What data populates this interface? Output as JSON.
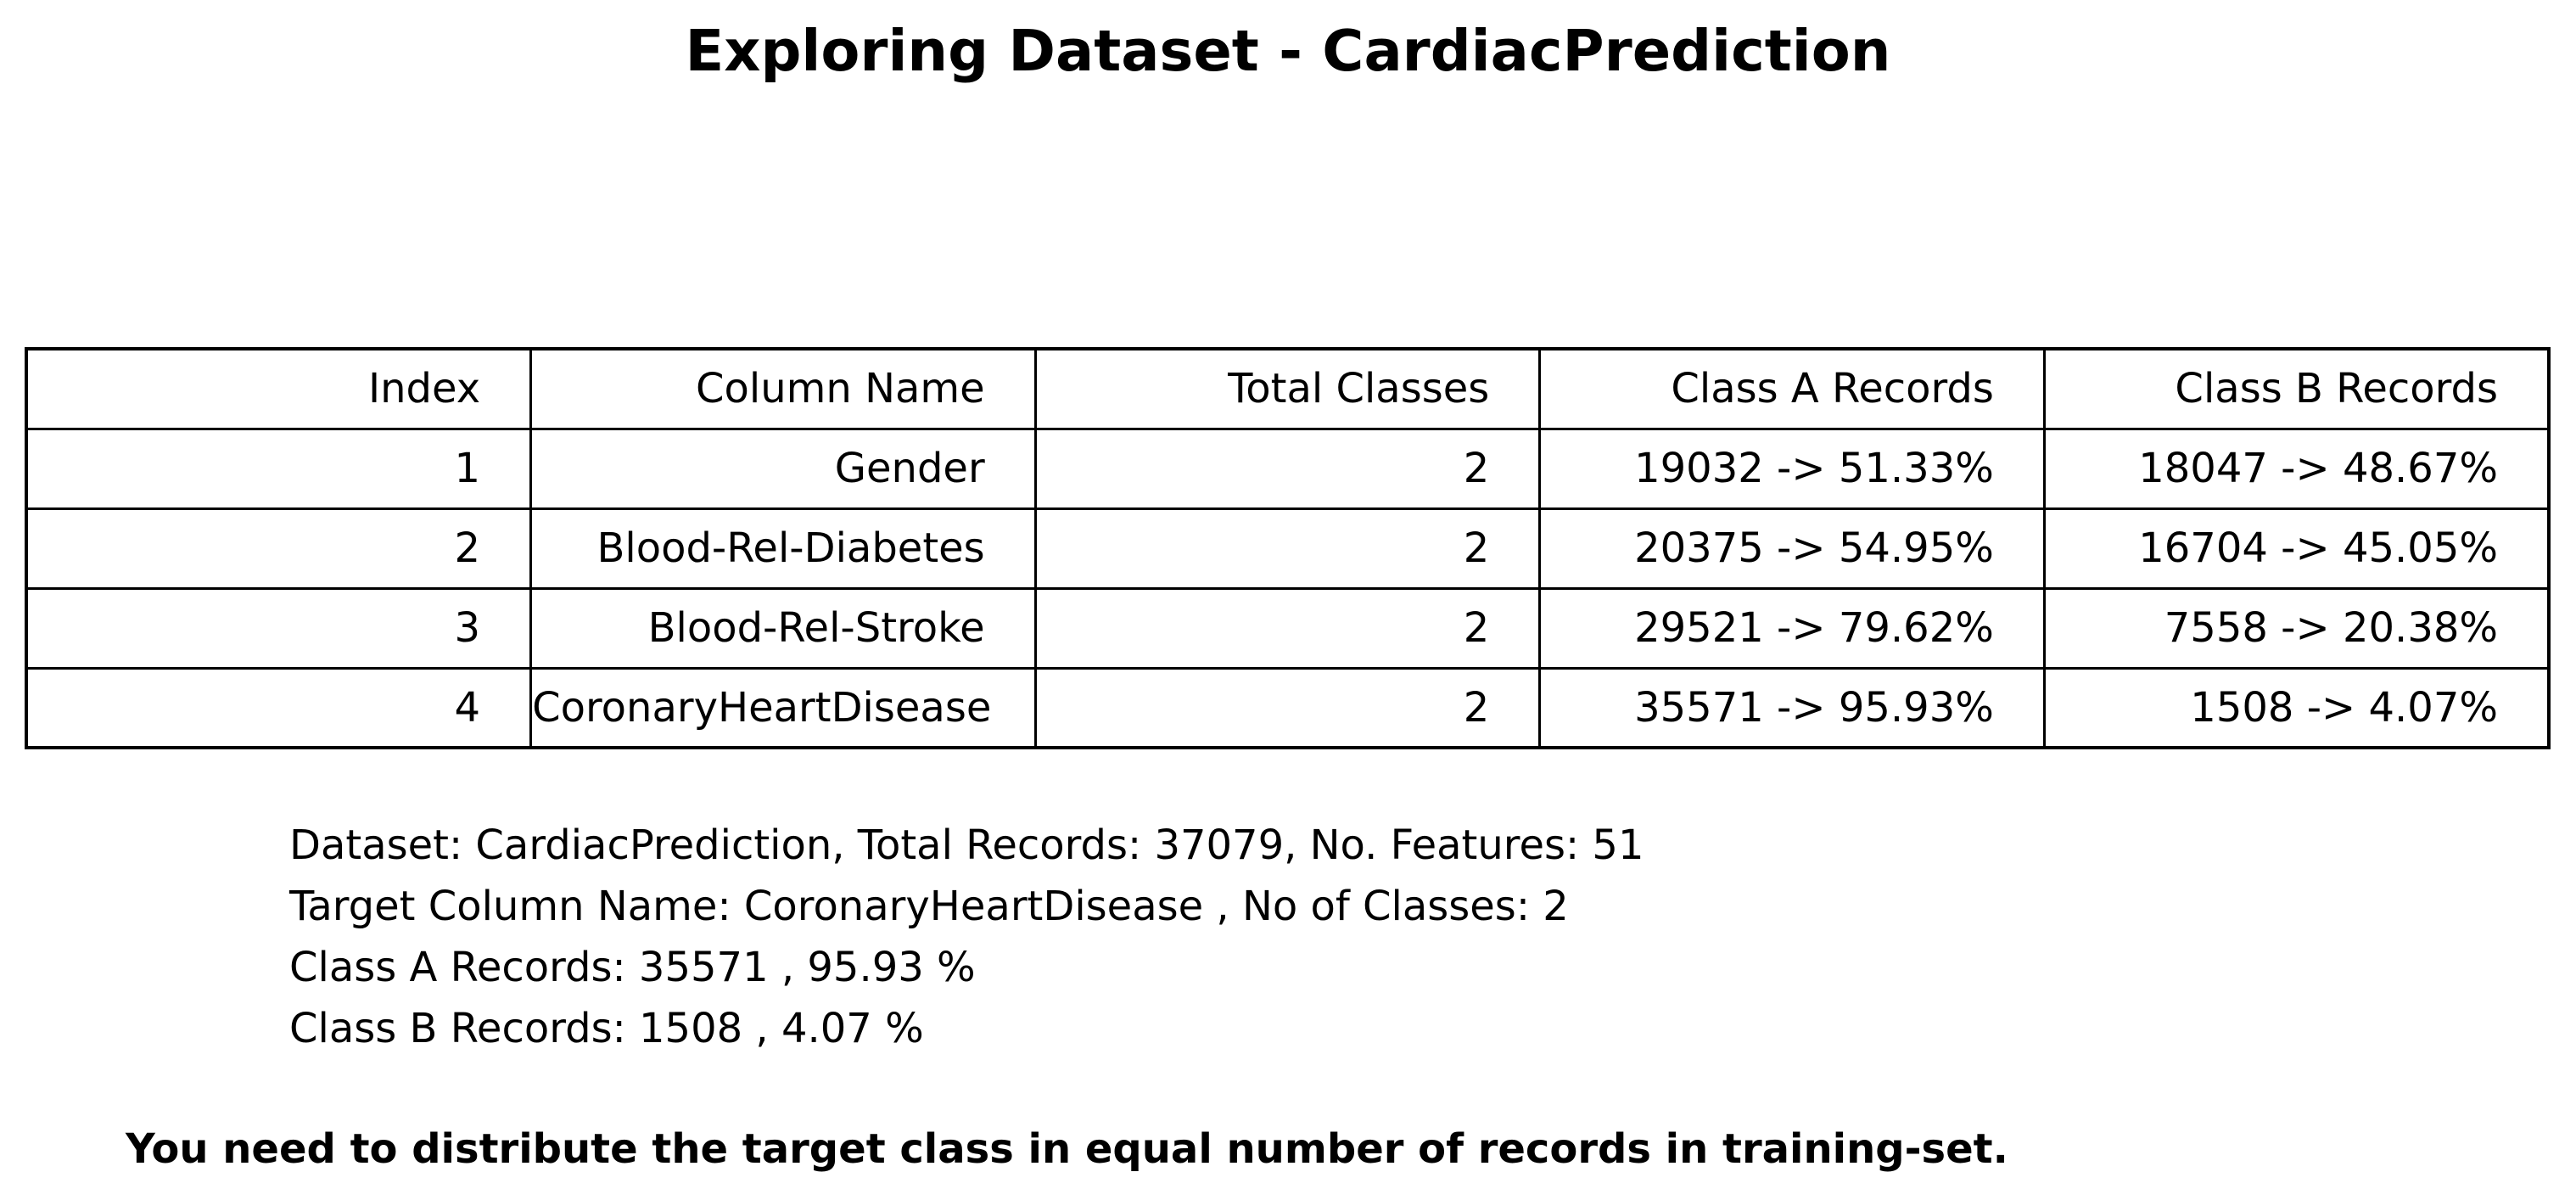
{
  "title": "Exploring Dataset - CardiacPrediction",
  "chart_data": {
    "type": "table",
    "title": "Exploring Dataset - CardiacPrediction",
    "columns": [
      "Index",
      "Column Name",
      "Total Classes",
      "Class A Records",
      "Class B Records"
    ],
    "rows": [
      [
        "1",
        "Gender",
        "2",
        "19032 -> 51.33%",
        "18047 -> 48.67%"
      ],
      [
        "2",
        "Blood-Rel-Diabetes",
        "2",
        "20375 -> 54.95%",
        "16704 -> 45.05%"
      ],
      [
        "3",
        "Blood-Rel-Stroke",
        "2",
        "29521 -> 79.62%",
        "7558 -> 20.38%"
      ],
      [
        "4",
        "CoronaryHeartDisease",
        "2",
        "35571 -> 95.93%",
        "1508 -> 4.07%"
      ]
    ]
  },
  "summary": [
    "Dataset:  CardiacPrediction, Total Records: 37079, No. Features: 51",
    "Target Column Name: CoronaryHeartDisease , No of Classes: 2",
    "Class A Records: 35571 , 95.93 %",
    "Class B Records: 1508 , 4.07 %"
  ],
  "note": "You need to distribute the target class in equal number of records in training-set."
}
